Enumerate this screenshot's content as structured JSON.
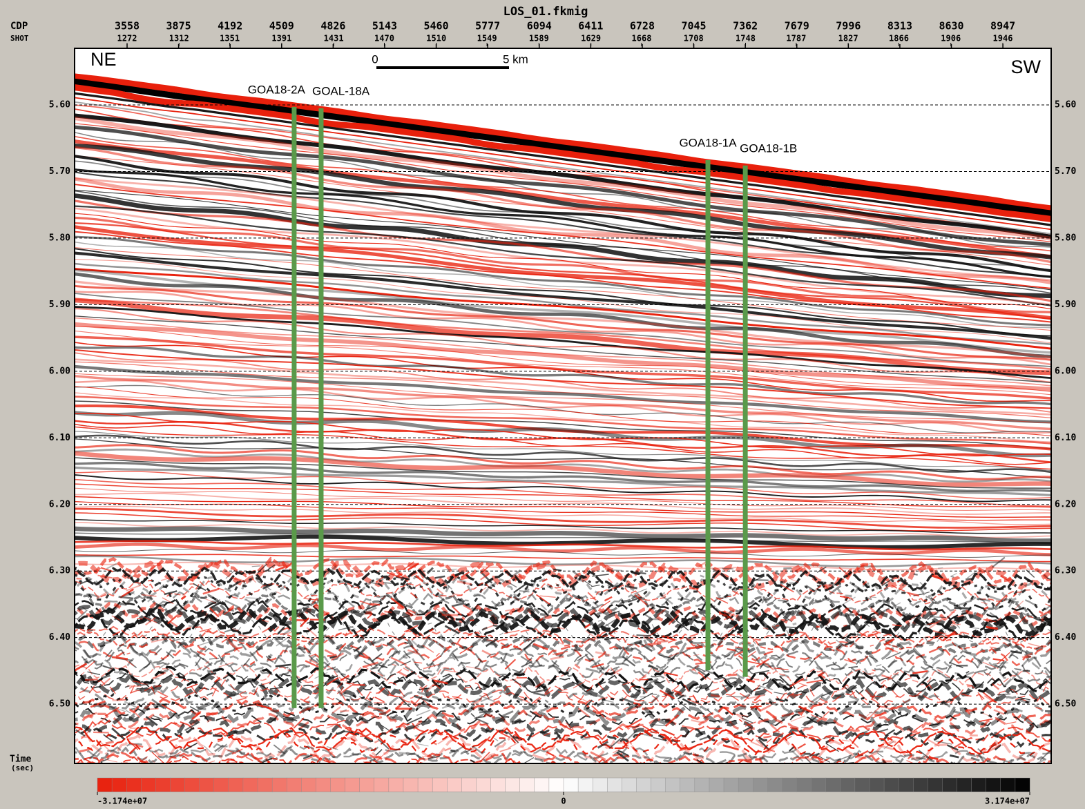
{
  "chart_data": {
    "type": "seismic-section",
    "title": "LOS_01.fkmig",
    "x_label": "CDP",
    "x2_label": "SHOT",
    "y_label": "Time",
    "y_unit": "(sec)",
    "xlim": [
      3235,
      9244
    ],
    "xticks": [
      3558,
      3875,
      4192,
      4509,
      4826,
      5143,
      5460,
      5777,
      6094,
      6411,
      6728,
      7045,
      7362,
      7679,
      7996,
      8313,
      8630,
      8947
    ],
    "x2lim": [
      1231.6,
      1983.2
    ],
    "x2ticks": [
      1272,
      1312,
      1351,
      1391,
      1431,
      1470,
      1510,
      1549,
      1589,
      1629,
      1668,
      1708,
      1748,
      1787,
      1827,
      1866,
      1906,
      1946
    ],
    "ylim": [
      5.515,
      6.589
    ],
    "yticks": [
      {
        "value": 5.6,
        "label": "5.60"
      },
      {
        "value": 5.7,
        "label": "5.70"
      },
      {
        "value": 5.8,
        "label": "5.80"
      },
      {
        "value": 5.9,
        "label": "5.90"
      },
      {
        "value": 6.0,
        "label": "6.00"
      },
      {
        "value": 6.1,
        "label": "6.10"
      },
      {
        "value": 6.2,
        "label": "6.20"
      },
      {
        "value": 6.3,
        "label": "6.30"
      },
      {
        "value": 6.4,
        "label": "6.40"
      },
      {
        "value": 6.5,
        "label": "6.50"
      }
    ],
    "grid": true,
    "directions": {
      "left": "NE",
      "right": "SW"
    },
    "scale_bar": {
      "start": "0",
      "end": "5 km"
    },
    "wells": [
      {
        "name": "GOA18-2A",
        "cdp": 4586,
        "top": 5.603,
        "bottom": 6.506,
        "color": "#5a9a4a"
      },
      {
        "name": "GOAL-18A",
        "cdp": 4752,
        "top": 5.605,
        "bottom": 6.506,
        "color": "#5a9a4a"
      },
      {
        "name": "GOA18-1A",
        "cdp": 7132,
        "top": 5.683,
        "bottom": 6.449,
        "color": "#5a9a4a"
      },
      {
        "name": "GOA18-1B",
        "cdp": 7362,
        "top": 5.691,
        "bottom": 6.459,
        "color": "#5a9a4a"
      }
    ],
    "colorbar": {
      "lim": [
        -31740000,
        31740000
      ],
      "ticks": [
        {
          "value": -31740000,
          "label": "-3.174e+07"
        },
        0,
        {
          "value": 31740000,
          "label": "3.174e+07"
        }
      ],
      "colors": [
        "#e8200c",
        "#ffffff",
        "#000000"
      ]
    }
  }
}
